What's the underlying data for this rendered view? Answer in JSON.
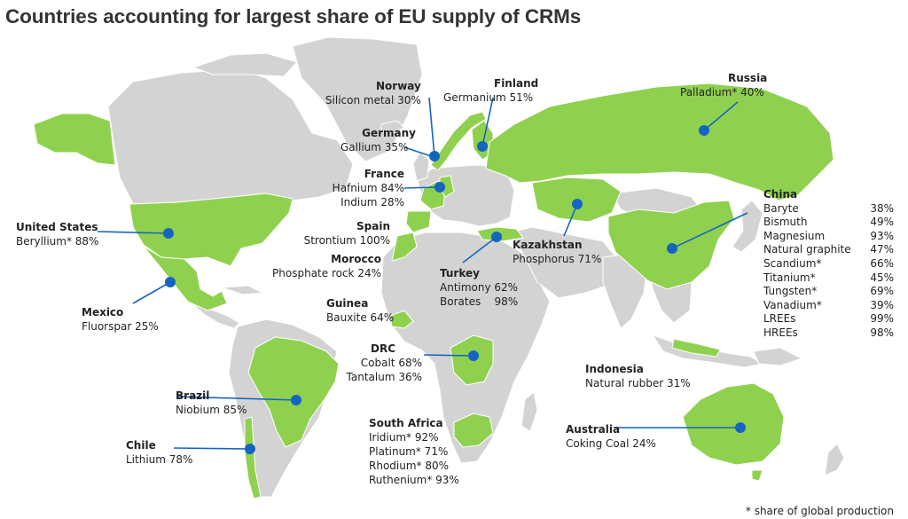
{
  "title": "Countries accounting for largest share of EU supply of CRMs",
  "footnote": "* share of global production",
  "colors": {
    "highlight": "#8fd14f",
    "land": "#d3d3d3",
    "border": "#ffffff",
    "marker": "#1565c0",
    "water": "#ffffff"
  },
  "countries": {
    "norway": {
      "name": "Norway",
      "items": [
        "Silicon metal 30%"
      ]
    },
    "finland": {
      "name": "Finland",
      "items": [
        "Germanium 51%"
      ]
    },
    "russia": {
      "name": "Russia",
      "items": [
        "Palladium* 40%"
      ]
    },
    "germany": {
      "name": "Germany",
      "items": [
        "Gallium 35%"
      ]
    },
    "france": {
      "name": "France",
      "items": [
        "Hafnium 84%",
        "Indium 28%"
      ]
    },
    "us": {
      "name": "United States",
      "items": [
        "Beryllium* 88%"
      ]
    },
    "spain": {
      "name": "Spain",
      "items": [
        "Strontium 100%"
      ]
    },
    "morocco": {
      "name": "Morocco",
      "items": [
        "Phosphate rock 24%"
      ]
    },
    "kazakhstan": {
      "name": "Kazakhstan",
      "items": [
        "Phosphorus 71%"
      ]
    },
    "turkey": {
      "name": "Turkey",
      "items": [
        "Antimony 62%",
        "Borates    98%"
      ]
    },
    "mexico": {
      "name": "Mexico",
      "items": [
        "Fluorspar 25%"
      ]
    },
    "guinea": {
      "name": "Guinea",
      "items": [
        "Bauxite 64%"
      ]
    },
    "drc": {
      "name": "DRC",
      "items": [
        "Cobalt 68%",
        "Tantalum 36%"
      ]
    },
    "brazil": {
      "name": "Brazil",
      "items": [
        "Niobium 85%"
      ]
    },
    "chile": {
      "name": "Chile",
      "items": [
        "Lithium 78%"
      ]
    },
    "south_africa": {
      "name": "South Africa",
      "items": [
        "Iridium* 92%",
        "Platinum* 71%",
        "Rhodium* 80%",
        "Ruthenium* 93%"
      ]
    },
    "indonesia": {
      "name": "Indonesia",
      "items": [
        "Natural rubber 31%"
      ]
    },
    "australia": {
      "name": "Australia",
      "items": [
        "Coking Coal 24%"
      ]
    },
    "china": {
      "name": "China",
      "rows": [
        {
          "label": "Baryte",
          "value": "38%"
        },
        {
          "label": "Bismuth",
          "value": "49%"
        },
        {
          "label": "Magnesium",
          "value": "93%"
        },
        {
          "label": "Natural graphite",
          "value": "47%"
        },
        {
          "label": "Scandium*",
          "value": "66%"
        },
        {
          "label": "Titanium*",
          "value": "45%"
        },
        {
          "label": "Tungsten*",
          "value": "69%"
        },
        {
          "label": "Vanadium*",
          "value": "39%"
        },
        {
          "label": "LREEs",
          "value": "99%"
        },
        {
          "label": "HREEs",
          "value": "98%"
        }
      ]
    }
  }
}
